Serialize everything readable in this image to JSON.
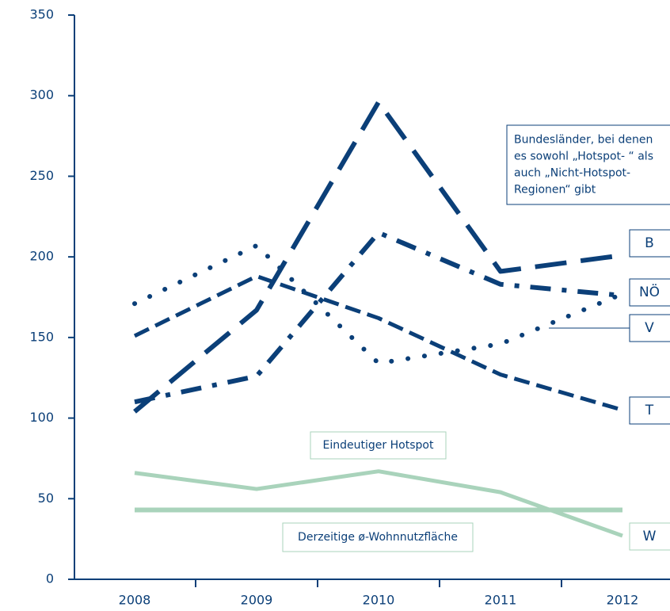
{
  "chart_data": {
    "type": "line",
    "categories": [
      "2008",
      "2009",
      "2010",
      "2011",
      "2012"
    ],
    "ylim": [
      0,
      350
    ],
    "yticks": [
      0,
      50,
      100,
      150,
      200,
      250,
      300,
      350
    ],
    "series": [
      {
        "name": "B",
        "color": "#0b3f78",
        "values": [
          104,
          167,
          296,
          191,
          201
        ]
      },
      {
        "name": "NÖ",
        "color": "#0b3f78",
        "values": [
          110,
          126,
          215,
          183,
          176
        ]
      },
      {
        "name": "V",
        "color": "#0b3f78",
        "values": [
          171,
          207,
          134,
          146,
          177
        ]
      },
      {
        "name": "T",
        "color": "#0b3f78",
        "values": [
          151,
          188,
          162,
          127,
          105
        ]
      },
      {
        "name": "W",
        "color": "#a9d3bb",
        "values": [
          66,
          56,
          67,
          54,
          27
        ]
      },
      {
        "name": "Derzeitige ø-Wohnnutzfläche",
        "color": "#a9d3bb",
        "values": [
          43,
          43,
          43,
          43,
          43
        ]
      }
    ],
    "annotations": [
      {
        "lines": [
          "Bundesländer, bei denen",
          "es sowohl „Hotspot- “ als",
          "auch „Nicht-Hotspot-",
          "Regionen“ gibt"
        ]
      },
      {
        "lines": [
          "Eindeutiger Hotspot"
        ]
      }
    ]
  }
}
